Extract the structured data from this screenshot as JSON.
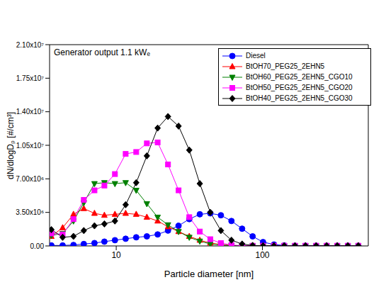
{
  "chart_data": {
    "type": "line",
    "title": "Generator output 1.1 kWₑ",
    "x_label": "Particle diameter [nm]",
    "y_label": "dN/dlogDₚ [#/cm³]",
    "log": "x",
    "grid": false,
    "legend": "upper right",
    "xlim": [
      3.5,
      530
    ],
    "xticks": [
      10,
      100
    ],
    "ylim": [
      0,
      21000000
    ],
    "yticks": [
      {
        "value": 0,
        "label": "0.00"
      },
      {
        "value": 3500000,
        "label": "3.50x10⁶"
      },
      {
        "value": 7000000,
        "label": "7.00x10⁶"
      },
      {
        "value": 10500000,
        "label": "1.05x10⁷"
      },
      {
        "value": 14000000,
        "label": "1.40x10⁷"
      },
      {
        "value": 17500000,
        "label": "1.75x10⁷"
      },
      {
        "value": 21000000,
        "label": "2.10x10⁷"
      }
    ],
    "x": [
      3.6,
      4.3,
      5.1,
      6.0,
      7.1,
      8.3,
      9.8,
      11.6,
      13.7,
      16.2,
      19.2,
      22.6,
      26.7,
      31.6,
      37.3,
      44.0,
      52.0,
      61.4,
      72.6,
      85.7,
      101,
      120,
      141,
      167,
      197,
      233,
      275,
      325,
      384,
      453
    ],
    "series": [
      {
        "name": "Diesel",
        "color": "#0000ff",
        "marker": "circle",
        "values": [
          50000,
          50000,
          100000,
          200000,
          300000,
          450000,
          600000,
          750000,
          900000,
          1000000,
          1200000,
          1600000,
          2100000,
          2800000,
          3300000,
          3400000,
          3200000,
          2600000,
          1800000,
          1000000,
          400000,
          150000,
          50000,
          20000,
          20000,
          20000,
          20000,
          20000,
          20000,
          20000
        ]
      },
      {
        "name": "BtOH70_PEG25_2EHN5",
        "color": "#ff0000",
        "marker": "triangle",
        "values": [
          1000000,
          1900000,
          3300000,
          3900000,
          3400000,
          3200000,
          3300000,
          3400000,
          3300000,
          3000000,
          2600000,
          2000000,
          1500000,
          1000000,
          600000,
          300000,
          150000,
          50000,
          20000,
          20000,
          20000,
          20000,
          20000,
          20000,
          20000,
          20000,
          20000,
          20000,
          20000,
          20000
        ]
      },
      {
        "name": "BtOH60_PEG25_2EHN5_CGO10",
        "color": "#008000",
        "marker": "triangle_down",
        "values": [
          1100000,
          1300000,
          2600000,
          4500000,
          6500000,
          6600000,
          6500000,
          6600000,
          5800000,
          4400000,
          3000000,
          2200000,
          1500000,
          900000,
          500000,
          200000,
          100000,
          30000,
          10000,
          10000,
          10000,
          10000,
          10000,
          10000,
          10000,
          10000,
          10000,
          10000,
          10000,
          10000
        ]
      },
      {
        "name": "BtOH50_PEG25_2EHN5_CGO20",
        "color": "#ff00ff",
        "marker": "square",
        "values": [
          1300000,
          1200000,
          2800000,
          4800000,
          5800000,
          6300000,
          7500000,
          9600000,
          9800000,
          10700000,
          10800000,
          8500000,
          5800000,
          3000000,
          1500000,
          700000,
          300000,
          100000,
          20000,
          20000,
          20000,
          20000,
          20000,
          20000,
          20000,
          20000,
          20000,
          20000,
          20000,
          20000
        ]
      },
      {
        "name": "BtOH40_PEG25_2EHN5_CGO30",
        "color": "#000000",
        "marker": "diamond",
        "values": [
          1700000,
          900000,
          1000000,
          1600000,
          2100000,
          2300000,
          2600000,
          4300000,
          6600000,
          9400000,
          12300000,
          13500000,
          12500000,
          10000000,
          6500000,
          3500000,
          1600000,
          600000,
          200000,
          50000,
          20000,
          20000,
          20000,
          20000,
          20000,
          20000,
          20000,
          20000,
          20000,
          20000
        ]
      }
    ]
  }
}
